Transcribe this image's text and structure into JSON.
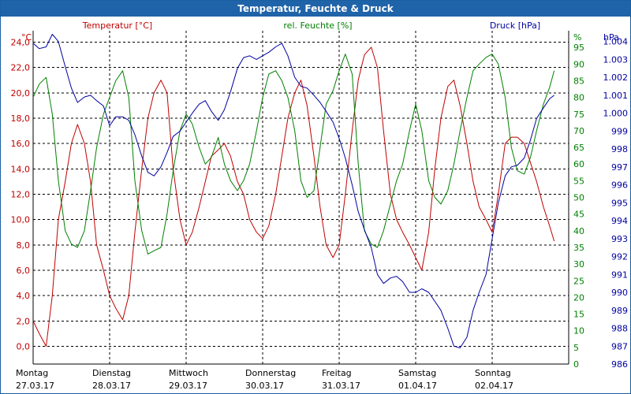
{
  "window": {
    "title": "Temperatur, Feuchte & Druck"
  },
  "colors": {
    "temp": "#c00000",
    "hum": "#008000",
    "press": "#0000a0",
    "grid": "#000000",
    "title_bg": "#1f63a8"
  },
  "chart_data": {
    "type": "line",
    "title": "Temperatur, Feuchte & Druck",
    "x_labels": [
      {
        "day": "Montag",
        "date": "27.03.17"
      },
      {
        "day": "Dienstag",
        "date": "28.03.17"
      },
      {
        "day": "Mittwoch",
        "date": "29.03.17"
      },
      {
        "day": "Donnerstag",
        "date": "30.03.17"
      },
      {
        "day": "Freitag",
        "date": "31.03.17"
      },
      {
        "day": "Samstag",
        "date": "01.04.17"
      },
      {
        "day": "Sonntag",
        "date": "02.04.17"
      }
    ],
    "x_range": [
      0,
      7
    ],
    "axes": {
      "temp": {
        "label": "Temperatur [°C]",
        "unit": "°C",
        "min": -1.4,
        "max": 24.9,
        "ticks": [
          "0,0",
          "2,0",
          "4,0",
          "6,0",
          "8,0",
          "10,0",
          "12,0",
          "14,0",
          "16,0",
          "18,0",
          "20,0",
          "22,0",
          "24,0"
        ],
        "tick_values": [
          0,
          2,
          4,
          6,
          8,
          10,
          12,
          14,
          16,
          18,
          20,
          22,
          24
        ]
      },
      "hum": {
        "label": "rel. Feuchte [%]",
        "unit": "%",
        "min": 0,
        "max": 100,
        "ticks": [
          "0",
          "5",
          "10",
          "15",
          "20",
          "25",
          "30",
          "35",
          "40",
          "45",
          "50",
          "55",
          "60",
          "65",
          "70",
          "75",
          "80",
          "85",
          "90",
          "95"
        ],
        "tick_values": [
          0,
          5,
          10,
          15,
          20,
          25,
          30,
          35,
          40,
          45,
          50,
          55,
          60,
          65,
          70,
          75,
          80,
          85,
          90,
          95
        ]
      },
      "press": {
        "label": "Druck [hPa]",
        "unit": "hPa",
        "min": 986,
        "max": 1004.6,
        "ticks": [
          "986",
          "987",
          "988",
          "989",
          "990",
          "991",
          "992",
          "993",
          "994",
          "995",
          "996",
          "997",
          "998",
          "999",
          "1.000",
          "1.001",
          "1.002",
          "1.003",
          "1.004"
        ],
        "tick_values": [
          986,
          987,
          988,
          989,
          990,
          991,
          992,
          993,
          994,
          995,
          996,
          997,
          998,
          999,
          1000,
          1001,
          1002,
          1003,
          1004
        ]
      }
    },
    "grid": true,
    "series": [
      {
        "name": "Temperatur",
        "axis": "temp",
        "color": "#c00000",
        "points": [
          [
            0.0,
            2.0
          ],
          [
            0.08,
            1.0
          ],
          [
            0.17,
            0.0
          ],
          [
            0.25,
            4.0
          ],
          [
            0.33,
            10.0
          ],
          [
            0.42,
            13.0
          ],
          [
            0.5,
            16.0
          ],
          [
            0.58,
            17.5
          ],
          [
            0.67,
            16.0
          ],
          [
            0.75,
            13.0
          ],
          [
            0.83,
            8.0
          ],
          [
            0.92,
            6.0
          ],
          [
            1.0,
            4.0
          ],
          [
            1.08,
            3.0
          ],
          [
            1.17,
            2.1
          ],
          [
            1.25,
            4.0
          ],
          [
            1.33,
            9.0
          ],
          [
            1.42,
            14.0
          ],
          [
            1.5,
            18.0
          ],
          [
            1.58,
            20.0
          ],
          [
            1.67,
            21.0
          ],
          [
            1.75,
            20.0
          ],
          [
            1.83,
            14.0
          ],
          [
            1.92,
            10.0
          ],
          [
            2.0,
            8.0
          ],
          [
            2.08,
            9.0
          ],
          [
            2.17,
            11.0
          ],
          [
            2.25,
            13.0
          ],
          [
            2.33,
            15.0
          ],
          [
            2.42,
            15.5
          ],
          [
            2.5,
            16.0
          ],
          [
            2.58,
            15.0
          ],
          [
            2.67,
            13.0
          ],
          [
            2.75,
            12.0
          ],
          [
            2.83,
            10.0
          ],
          [
            2.92,
            9.0
          ],
          [
            3.0,
            8.5
          ],
          [
            3.08,
            9.5
          ],
          [
            3.17,
            12.0
          ],
          [
            3.25,
            15.0
          ],
          [
            3.33,
            18.0
          ],
          [
            3.42,
            20.0
          ],
          [
            3.5,
            21.0
          ],
          [
            3.58,
            19.0
          ],
          [
            3.67,
            15.0
          ],
          [
            3.75,
            11.0
          ],
          [
            3.83,
            8.0
          ],
          [
            3.92,
            7.0
          ],
          [
            4.0,
            8.0
          ],
          [
            4.08,
            12.0
          ],
          [
            4.17,
            17.0
          ],
          [
            4.25,
            21.0
          ],
          [
            4.33,
            23.0
          ],
          [
            4.42,
            23.6
          ],
          [
            4.5,
            22.0
          ],
          [
            4.58,
            17.0
          ],
          [
            4.67,
            12.0
          ],
          [
            4.75,
            10.0
          ],
          [
            4.83,
            9.0
          ],
          [
            4.92,
            8.0
          ],
          [
            5.0,
            7.0
          ],
          [
            5.08,
            6.0
          ],
          [
            5.17,
            9.0
          ],
          [
            5.25,
            14.0
          ],
          [
            5.33,
            18.0
          ],
          [
            5.42,
            20.5
          ],
          [
            5.5,
            21.0
          ],
          [
            5.58,
            19.0
          ],
          [
            5.67,
            16.0
          ],
          [
            5.75,
            13.0
          ],
          [
            5.83,
            11.0
          ],
          [
            5.92,
            10.0
          ],
          [
            6.0,
            9.0
          ],
          [
            6.08,
            12.0
          ],
          [
            6.17,
            16.0
          ],
          [
            6.25,
            16.5
          ],
          [
            6.33,
            16.5
          ],
          [
            6.42,
            16.0
          ],
          [
            6.5,
            14.5
          ],
          [
            6.58,
            13.0
          ],
          [
            6.67,
            11.0
          ],
          [
            6.75,
            9.5
          ],
          [
            6.81,
            8.3
          ]
        ]
      },
      {
        "name": "rel. Feuchte",
        "axis": "hum",
        "color": "#008000",
        "points": [
          [
            0.0,
            80
          ],
          [
            0.08,
            84
          ],
          [
            0.17,
            86
          ],
          [
            0.25,
            75
          ],
          [
            0.33,
            55
          ],
          [
            0.42,
            40
          ],
          [
            0.5,
            36
          ],
          [
            0.58,
            35
          ],
          [
            0.67,
            40
          ],
          [
            0.75,
            52
          ],
          [
            0.83,
            65
          ],
          [
            0.92,
            75
          ],
          [
            1.0,
            80
          ],
          [
            1.08,
            85
          ],
          [
            1.17,
            88
          ],
          [
            1.25,
            80
          ],
          [
            1.33,
            55
          ],
          [
            1.42,
            40
          ],
          [
            1.5,
            33
          ],
          [
            1.58,
            34
          ],
          [
            1.67,
            35
          ],
          [
            1.75,
            45
          ],
          [
            1.83,
            58
          ],
          [
            1.92,
            70
          ],
          [
            2.0,
            75
          ],
          [
            2.08,
            72
          ],
          [
            2.17,
            65
          ],
          [
            2.25,
            60
          ],
          [
            2.33,
            62
          ],
          [
            2.42,
            68
          ],
          [
            2.5,
            60
          ],
          [
            2.58,
            55
          ],
          [
            2.67,
            52
          ],
          [
            2.75,
            55
          ],
          [
            2.83,
            60
          ],
          [
            2.92,
            70
          ],
          [
            3.0,
            80
          ],
          [
            3.08,
            87
          ],
          [
            3.17,
            88
          ],
          [
            3.25,
            85
          ],
          [
            3.33,
            80
          ],
          [
            3.42,
            70
          ],
          [
            3.5,
            55
          ],
          [
            3.58,
            50
          ],
          [
            3.67,
            52
          ],
          [
            3.75,
            65
          ],
          [
            3.83,
            78
          ],
          [
            3.92,
            82
          ],
          [
            4.0,
            88
          ],
          [
            4.08,
            93
          ],
          [
            4.17,
            87
          ],
          [
            4.25,
            60
          ],
          [
            4.33,
            40
          ],
          [
            4.42,
            36
          ],
          [
            4.5,
            35
          ],
          [
            4.58,
            40
          ],
          [
            4.67,
            48
          ],
          [
            4.75,
            55
          ],
          [
            4.83,
            60
          ],
          [
            4.92,
            70
          ],
          [
            5.0,
            78
          ],
          [
            5.08,
            70
          ],
          [
            5.17,
            55
          ],
          [
            5.25,
            50
          ],
          [
            5.33,
            48
          ],
          [
            5.42,
            52
          ],
          [
            5.5,
            60
          ],
          [
            5.58,
            70
          ],
          [
            5.67,
            80
          ],
          [
            5.75,
            88
          ],
          [
            5.83,
            90
          ],
          [
            5.92,
            92
          ],
          [
            6.0,
            93
          ],
          [
            6.08,
            90
          ],
          [
            6.17,
            80
          ],
          [
            6.25,
            65
          ],
          [
            6.33,
            58
          ],
          [
            6.42,
            57
          ],
          [
            6.5,
            62
          ],
          [
            6.58,
            70
          ],
          [
            6.67,
            78
          ],
          [
            6.75,
            83
          ],
          [
            6.81,
            88
          ]
        ]
      },
      {
        "name": "Druck",
        "axis": "press",
        "color": "#0000a0",
        "points": [
          [
            0.0,
            1003.9
          ],
          [
            0.08,
            1003.6
          ],
          [
            0.17,
            1003.7
          ],
          [
            0.25,
            1004.4
          ],
          [
            0.33,
            1004.0
          ],
          [
            0.42,
            1002.6
          ],
          [
            0.5,
            1001.4
          ],
          [
            0.58,
            1000.6
          ],
          [
            0.67,
            1000.9
          ],
          [
            0.75,
            1001.0
          ],
          [
            0.83,
            1000.7
          ],
          [
            0.92,
            1000.4
          ],
          [
            1.0,
            999.3
          ],
          [
            1.08,
            999.8
          ],
          [
            1.17,
            999.8
          ],
          [
            1.25,
            999.6
          ],
          [
            1.33,
            998.8
          ],
          [
            1.42,
            997.6
          ],
          [
            1.5,
            996.7
          ],
          [
            1.58,
            996.5
          ],
          [
            1.67,
            997.0
          ],
          [
            1.75,
            997.8
          ],
          [
            1.83,
            998.7
          ],
          [
            1.92,
            999.0
          ],
          [
            2.0,
            999.5
          ],
          [
            2.08,
            1000.0
          ],
          [
            2.17,
            1000.5
          ],
          [
            2.25,
            1000.7
          ],
          [
            2.33,
            1000.1
          ],
          [
            2.42,
            999.6
          ],
          [
            2.5,
            1000.2
          ],
          [
            2.58,
            1001.2
          ],
          [
            2.67,
            1002.5
          ],
          [
            2.75,
            1003.1
          ],
          [
            2.83,
            1003.2
          ],
          [
            2.92,
            1003.0
          ],
          [
            3.0,
            1003.2
          ],
          [
            3.08,
            1003.4
          ],
          [
            3.17,
            1003.7
          ],
          [
            3.25,
            1003.9
          ],
          [
            3.33,
            1003.2
          ],
          [
            3.42,
            1002.0
          ],
          [
            3.5,
            1001.5
          ],
          [
            3.58,
            1001.4
          ],
          [
            3.67,
            1001.0
          ],
          [
            3.75,
            1000.6
          ],
          [
            3.83,
            1000.1
          ],
          [
            3.92,
            999.5
          ],
          [
            4.0,
            998.6
          ],
          [
            4.08,
            997.5
          ],
          [
            4.17,
            996.0
          ],
          [
            4.25,
            994.5
          ],
          [
            4.33,
            993.5
          ],
          [
            4.42,
            992.5
          ],
          [
            4.5,
            991.0
          ],
          [
            4.58,
            990.5
          ],
          [
            4.67,
            990.8
          ],
          [
            4.75,
            990.9
          ],
          [
            4.83,
            990.6
          ],
          [
            4.92,
            990.0
          ],
          [
            5.0,
            990.0
          ],
          [
            5.08,
            990.2
          ],
          [
            5.17,
            990.0
          ],
          [
            5.25,
            989.5
          ],
          [
            5.33,
            989.0
          ],
          [
            5.42,
            988.0
          ],
          [
            5.5,
            987.0
          ],
          [
            5.58,
            986.9
          ],
          [
            5.67,
            987.5
          ],
          [
            5.75,
            989.0
          ],
          [
            5.83,
            990.0
          ],
          [
            5.92,
            991.0
          ],
          [
            6.0,
            993.0
          ],
          [
            6.08,
            995.0
          ],
          [
            6.17,
            996.5
          ],
          [
            6.25,
            997.0
          ],
          [
            6.33,
            997.1
          ],
          [
            6.42,
            997.5
          ],
          [
            6.5,
            998.5
          ],
          [
            6.58,
            999.7
          ],
          [
            6.67,
            1000.3
          ],
          [
            6.75,
            1000.8
          ],
          [
            6.81,
            1001.0
          ]
        ]
      }
    ]
  }
}
